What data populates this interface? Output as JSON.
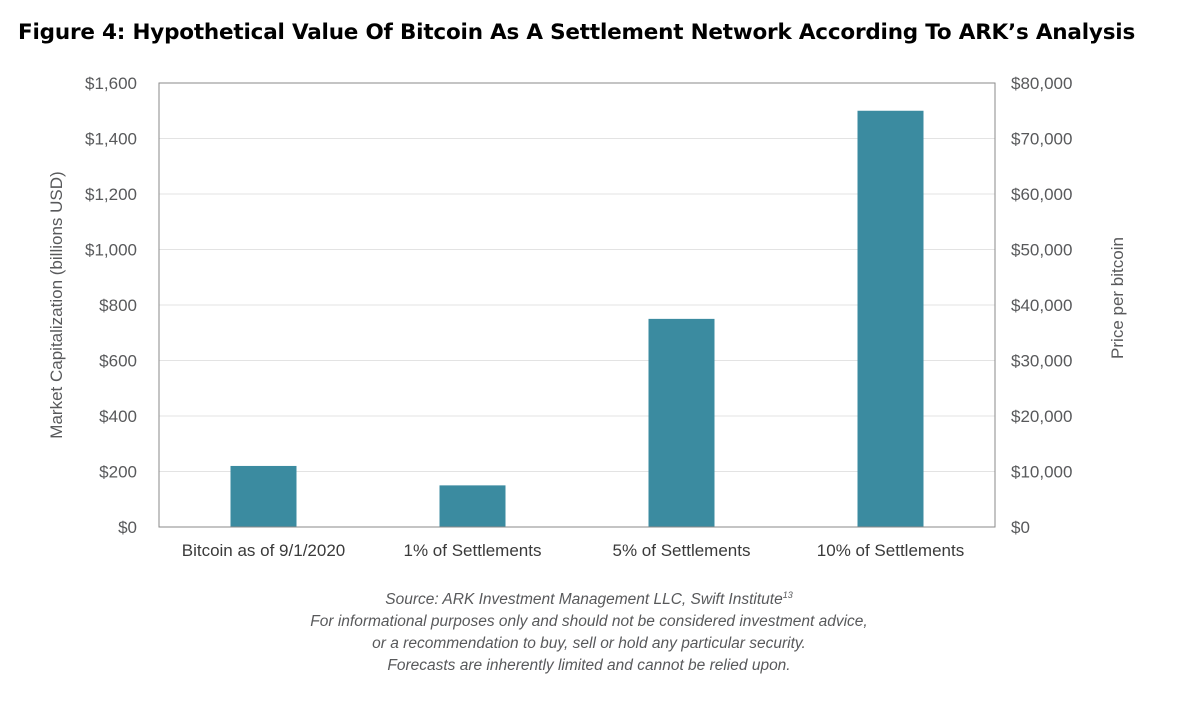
{
  "chart_data": {
    "type": "bar",
    "title": "Figure 4: Hypothetical Value Of Bitcoin As A Settlement Network According To ARK’s Analysis",
    "categories": [
      "Bitcoin as of 9/1/2020",
      "1% of Settlements",
      "5% of Settlements",
      "10% of Settlements"
    ],
    "values": [
      220,
      150,
      750,
      1500
    ],
    "ylabel": "Market Capitalization (billions USD)",
    "ylabel_right": "Price per bitcoin",
    "ylim": [
      0,
      1600
    ],
    "ylim_right": [
      0,
      80000
    ],
    "yticks": [
      "$0",
      "$200",
      "$400",
      "$600",
      "$800",
      "$1,000",
      "$1,200",
      "$1,400",
      "$1,600"
    ],
    "yticks_right": [
      "$0",
      "$10,000",
      "$20,000",
      "$30,000",
      "$40,000",
      "$50,000",
      "$60,000",
      "$70,000",
      "$80,000"
    ],
    "bar_color": "#3b8ba0",
    "grid": true
  },
  "notes": {
    "source": "Source: ARK Investment Management LLC, Swift Institute",
    "source_sup": "13",
    "line2": "For informational purposes only and should not be considered investment advice,",
    "line3": "or a recommendation to buy, sell or hold any particular security.",
    "line4": "Forecasts are inherently limited and cannot be relied upon."
  }
}
